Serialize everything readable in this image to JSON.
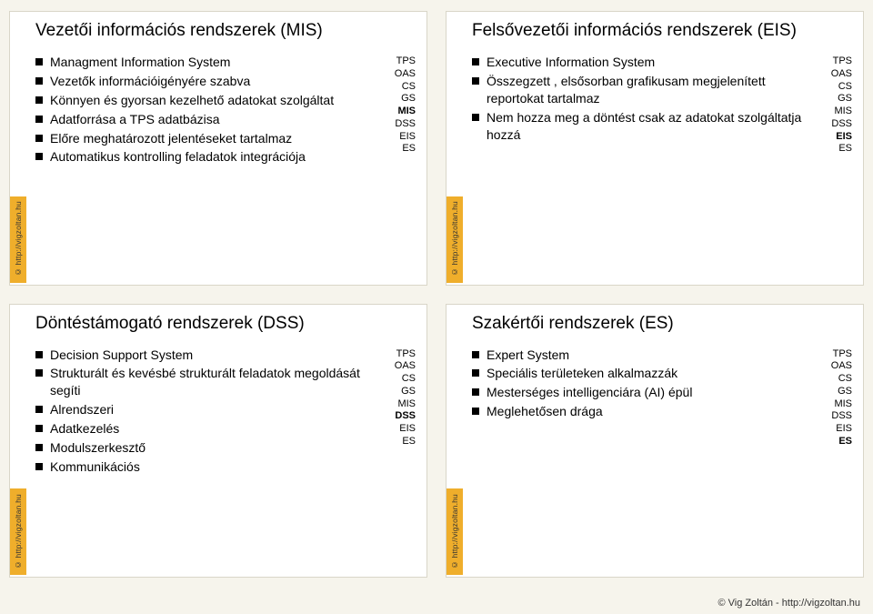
{
  "accent_color": "#efae2b",
  "bg_color": "#f6f4ec",
  "slide_bg": "#ffffff",
  "copyright_vertical": "© http://vigzoltan.hu",
  "footer": "© Vig Zoltán - http://vigzoltan.hu",
  "slides": [
    {
      "title": "Vezetői információs rendszerek (MIS)",
      "bullets": [
        "Managment Information System",
        "Vezetők információigényére szabva",
        "Könnyen és gyorsan kezelhető adatokat szolgáltat",
        "Adatforrása a TPS adatbázisa",
        "Előre meghatározott jelentéseket tartalmaz",
        "Automatikus kontrolling feladatok integrációja"
      ],
      "side": [
        "TPS",
        "OAS",
        "CS",
        "GS",
        "MIS",
        "DSS",
        "EIS",
        "ES"
      ],
      "bold_index": 4
    },
    {
      "title": "Felsővezetői információs rendszerek (EIS)",
      "bullets": [
        "Executive Information System",
        "Összegzett , elsősorban grafikusam megjelenített reportokat tartalmaz",
        "Nem hozza meg a döntést csak az adatokat szolgáltatja hozzá"
      ],
      "side": [
        "TPS",
        "OAS",
        "CS",
        "GS",
        "MIS",
        "DSS",
        "EIS",
        "ES"
      ],
      "bold_index": 6
    },
    {
      "title": "Döntéstámogató rendszerek (DSS)",
      "bullets": [
        "Decision Support System",
        "Strukturált és kevésbé strukturált feladatok megoldását segíti",
        "Alrendszeri",
        "Adatkezelés",
        "Modulszerkesztő",
        "Kommunikációs"
      ],
      "side": [
        "TPS",
        "OAS",
        "CS",
        "GS",
        "MIS",
        "DSS",
        "EIS",
        "ES"
      ],
      "bold_index": 5
    },
    {
      "title": "Szakértői rendszerek (ES)",
      "bullets": [
        "Expert System",
        "Speciális területeken alkalmazzák",
        "Mesterséges intelligenciára (AI) épül",
        "Meglehetősen drága"
      ],
      "side": [
        "TPS",
        "OAS",
        "CS",
        "GS",
        "MIS",
        "DSS",
        "EIS",
        "ES"
      ],
      "bold_index": 7
    }
  ]
}
